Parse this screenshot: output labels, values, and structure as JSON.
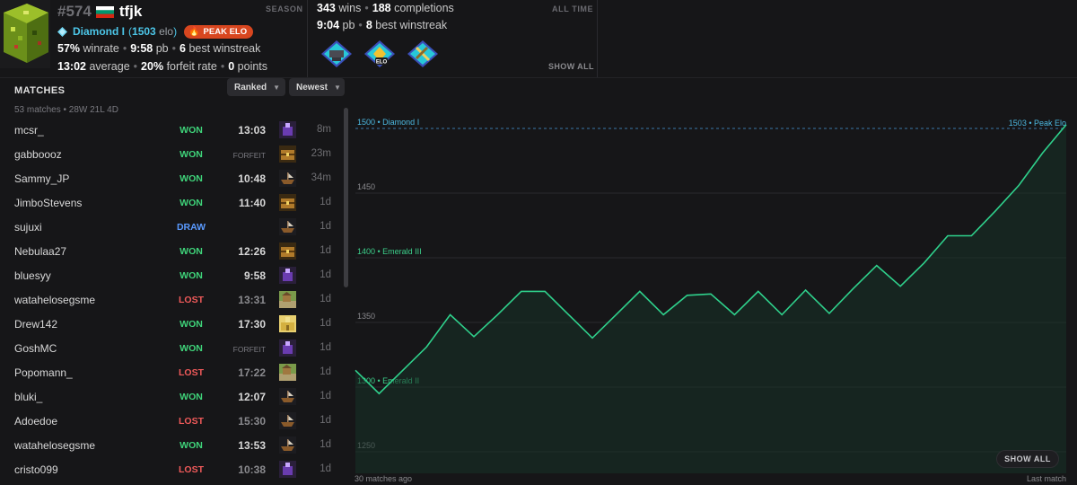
{
  "header": {
    "rank_number": "#574",
    "username": "tfjk",
    "rank_title": "Diamond I",
    "elo": "1503",
    "elo_suffix": "elo",
    "peak_badge": "PEAK ELO",
    "season_label": "SEASON",
    "alltime_label": "ALL TIME",
    "show_all": "SHOW ALL",
    "season_stats": {
      "winrate": "57%",
      "winrate_label": "winrate",
      "pb": "9:58",
      "pb_label": "pb",
      "best_winstreak": "6",
      "best_winstreak_label": "best winstreak",
      "average": "13:02",
      "average_label": "average",
      "forfeit_rate": "20%",
      "forfeit_rate_label": "forfeit rate",
      "points": "0",
      "points_label": "points"
    },
    "alltime_stats": {
      "wins": "343",
      "wins_label": "wins",
      "completions": "188",
      "completions_label": "completions",
      "pb": "9:04",
      "pb_label": "pb",
      "best_winstreak": "8",
      "best_winstreak_label": "best winstreak"
    },
    "achievements": [
      "anvil-achievement-icon",
      "elo-achievement-icon",
      "pickaxe-achievement-icon"
    ],
    "achievement_badge_text": "ELO",
    "colors": {
      "accent": "#4cc6e8",
      "peak": "#d8461f",
      "won": "#3fd47a",
      "lost": "#f05a5a",
      "draw": "#5a9aff"
    }
  },
  "matches": {
    "title": "MATCHES",
    "filter_type": "Ranked",
    "sort": "Newest",
    "summary": "53 matches • 28W 21L 4D",
    "rows": [
      {
        "name": "mcsr_",
        "result": "WON",
        "time": "13:03",
        "seed": "purple",
        "ago": "8m"
      },
      {
        "name": "gabboooz",
        "result": "WON",
        "time": "FORFEIT",
        "seed": "chest",
        "ago": "23m"
      },
      {
        "name": "Sammy_JP",
        "result": "WON",
        "time": "10:48",
        "seed": "ship",
        "ago": "34m"
      },
      {
        "name": "JimboStevens",
        "result": "WON",
        "time": "11:40",
        "seed": "chest",
        "ago": "1d"
      },
      {
        "name": "sujuxi",
        "result": "DRAW",
        "time": "",
        "seed": "ship",
        "ago": "1d"
      },
      {
        "name": "Nebulaa27",
        "result": "WON",
        "time": "12:26",
        "seed": "chest",
        "ago": "1d"
      },
      {
        "name": "bluesyy",
        "result": "WON",
        "time": "9:58",
        "seed": "purple",
        "ago": "1d"
      },
      {
        "name": "watahelosegsme",
        "result": "LOST",
        "time": "13:31",
        "seed": "village",
        "ago": "1d"
      },
      {
        "name": "Drew142",
        "result": "WON",
        "time": "17:30",
        "seed": "temple",
        "ago": "1d"
      },
      {
        "name": "GoshMC",
        "result": "WON",
        "time": "FORFEIT",
        "seed": "purple",
        "ago": "1d"
      },
      {
        "name": "Popomann_",
        "result": "LOST",
        "time": "17:22",
        "seed": "village",
        "ago": "1d"
      },
      {
        "name": "bluki_",
        "result": "WON",
        "time": "12:07",
        "seed": "ship",
        "ago": "1d"
      },
      {
        "name": "Adoedoe",
        "result": "LOST",
        "time": "15:30",
        "seed": "ship",
        "ago": "1d"
      },
      {
        "name": "watahelosegsme",
        "result": "WON",
        "time": "13:53",
        "seed": "ship",
        "ago": "1d"
      },
      {
        "name": "cristo099",
        "result": "LOST",
        "time": "10:38",
        "seed": "purple",
        "ago": "1d"
      }
    ]
  },
  "chart_data": {
    "type": "area",
    "ylim": [
      1240,
      1500
    ],
    "ytick_labels": [
      {
        "value": 1500,
        "label": "1500",
        "rank": "Diamond I"
      },
      {
        "value": 1450,
        "label": "1450",
        "rank": ""
      },
      {
        "value": 1400,
        "label": "1400",
        "rank": "Emerald III"
      },
      {
        "value": 1350,
        "label": "1350",
        "rank": ""
      },
      {
        "value": 1300,
        "label": "1300",
        "rank": "Emerald II"
      },
      {
        "value": 1250,
        "label": "1250",
        "rank": ""
      }
    ],
    "x_start_label": "30 matches ago",
    "x_end_label": "Last match",
    "peak_label": "1503 • Peak Elo",
    "values": [
      1313,
      1295,
      1313,
      1331,
      1356,
      1339,
      1356,
      1374,
      1374,
      1356,
      1338,
      1356,
      1374,
      1356,
      1371,
      1372,
      1356,
      1374,
      1356,
      1375,
      1357,
      1376,
      1394,
      1378,
      1396,
      1417,
      1417,
      1436,
      1456,
      1481,
      1503
    ],
    "line_color": "#2fd18c",
    "fill_color": "#173328",
    "show_all": "SHOW ALL"
  }
}
